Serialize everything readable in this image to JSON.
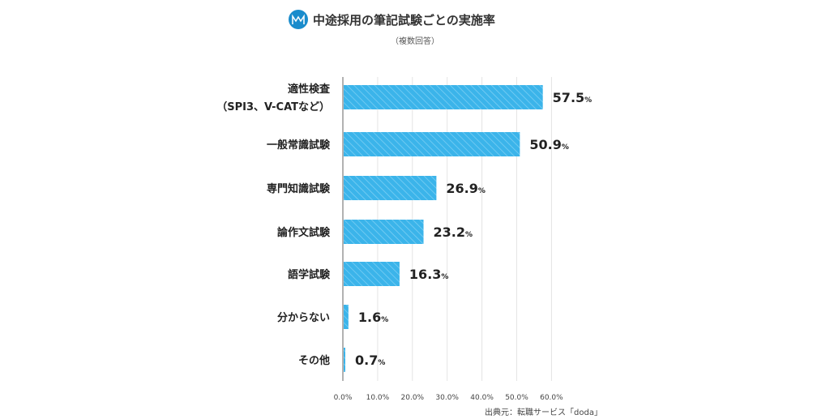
{
  "chart_data": {
    "type": "bar",
    "orientation": "horizontal",
    "title": "中途採用の筆記試験ごとの実施率",
    "subtitle": "（複数回答）",
    "categories": [
      "適性検査\n（SPI3、V-CATなど）",
      "一般常識試験",
      "専門知識試験",
      "論作文試験",
      "語学試験",
      "分からない",
      "その他"
    ],
    "values": [
      57.5,
      50.9,
      26.9,
      23.2,
      16.3,
      1.6,
      0.7
    ],
    "value_labels": [
      "57.5",
      "50.9",
      "26.9",
      "23.2",
      "16.3",
      "1.6",
      "0.7"
    ],
    "unit": "%",
    "xlim": [
      0,
      60
    ],
    "xticks": [
      "0.0%",
      "10.0%",
      "20.0%",
      "30.0%",
      "40.0%",
      "50.0%",
      "60.0%"
    ],
    "grid": true,
    "colors": {
      "bar": "#3bb4ea",
      "stripe": "#7fd0f4",
      "grid": "#e4e4e4",
      "axis": "#999999"
    },
    "source": "出典元：転職サービス「doda」"
  }
}
